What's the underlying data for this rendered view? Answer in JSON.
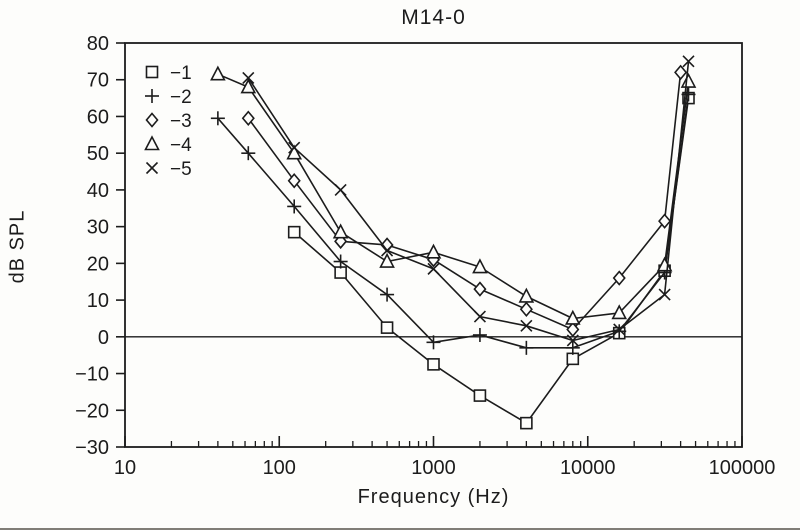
{
  "figure": {
    "title": "M14-0",
    "xlabel": "Frequency (Hz)",
    "ylabel": "dB SPL"
  },
  "colors": {
    "ink": "#1c1c1c",
    "paper": "#fdfdfb"
  },
  "legend": {
    "items": [
      {
        "marker": "square",
        "icon": "square-marker-icon",
        "label": "−1"
      },
      {
        "marker": "plus",
        "icon": "plus-marker-icon",
        "label": "−2"
      },
      {
        "marker": "diamond",
        "icon": "diamond-marker-icon",
        "label": "−3"
      },
      {
        "marker": "triangle",
        "icon": "triangle-marker-icon",
        "label": "−4"
      },
      {
        "marker": "x",
        "icon": "x-marker-icon",
        "label": "−5"
      }
    ]
  },
  "chart_data": {
    "type": "line",
    "title": "M14-0",
    "xlabel": "Frequency (Hz)",
    "ylabel": "dB SPL",
    "x_scale": "log",
    "xlim": [
      10,
      100000
    ],
    "ylim": [
      -30,
      80
    ],
    "x_ticks": [
      10,
      100,
      1000,
      10000,
      100000
    ],
    "y_ticks": [
      -30,
      -20,
      -10,
      0,
      10,
      20,
      30,
      40,
      50,
      60,
      70,
      80
    ],
    "grid": false,
    "zero_line": 0,
    "legend_position": "upper-left",
    "series": [
      {
        "name": "−1",
        "marker": "square",
        "points": [
          [
            125,
            28.5
          ],
          [
            250,
            17.5
          ],
          [
            500,
            2.5
          ],
          [
            1000,
            -7.5
          ],
          [
            2000,
            -16
          ],
          [
            4000,
            -23.5
          ],
          [
            8000,
            -6
          ],
          [
            16000,
            1
          ],
          [
            31500,
            18
          ],
          [
            45000,
            65
          ]
        ]
      },
      {
        "name": "−2",
        "marker": "plus",
        "points": [
          [
            40,
            59.5
          ],
          [
            63,
            50
          ],
          [
            125,
            35.5
          ],
          [
            250,
            20.5
          ],
          [
            500,
            11.5
          ],
          [
            1000,
            -1.5
          ],
          [
            2000,
            0.5
          ],
          [
            4000,
            -3
          ],
          [
            8000,
            -3
          ],
          [
            16000,
            1.5
          ],
          [
            31500,
            17.5
          ],
          [
            45000,
            66
          ]
        ]
      },
      {
        "name": "−3",
        "marker": "diamond",
        "points": [
          [
            63,
            59.5
          ],
          [
            125,
            42.5
          ],
          [
            250,
            26
          ],
          [
            500,
            25
          ],
          [
            1000,
            21
          ],
          [
            2000,
            13
          ],
          [
            4000,
            7.5
          ],
          [
            8000,
            2
          ],
          [
            16000,
            16
          ],
          [
            31500,
            31.5
          ],
          [
            40000,
            72
          ]
        ]
      },
      {
        "name": "−4",
        "marker": "triangle",
        "points": [
          [
            40,
            71.5
          ],
          [
            63,
            68
          ],
          [
            125,
            50
          ],
          [
            250,
            28.5
          ],
          [
            500,
            20.5
          ],
          [
            1000,
            23
          ],
          [
            2000,
            19
          ],
          [
            4000,
            11
          ],
          [
            8000,
            5
          ],
          [
            16000,
            6.5
          ],
          [
            31500,
            19.5
          ],
          [
            45000,
            69.5
          ]
        ]
      },
      {
        "name": "−5",
        "marker": "x",
        "points": [
          [
            63,
            70.5
          ],
          [
            125,
            51.5
          ],
          [
            250,
            40
          ],
          [
            500,
            23.5
          ],
          [
            1000,
            18.5
          ],
          [
            2000,
            5.5
          ],
          [
            4000,
            3
          ],
          [
            8000,
            -1
          ],
          [
            16000,
            2
          ],
          [
            31500,
            11.5
          ],
          [
            45000,
            75
          ]
        ]
      }
    ]
  }
}
